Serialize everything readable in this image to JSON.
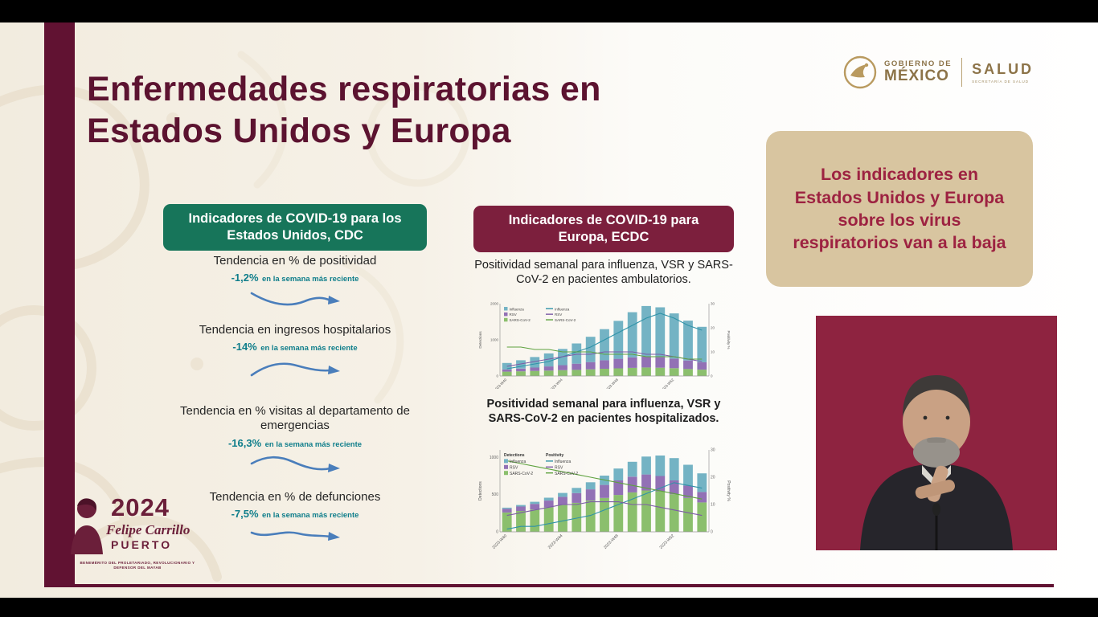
{
  "title": {
    "line1": "Enfermedades respiratorias en",
    "line2": "Estados Unidos y Europa"
  },
  "gov": {
    "line1": "GOBIERNO DE",
    "line2": "MÉXICO",
    "dept": "SALUD",
    "dept_sub": "SECRETARÍA DE SALUD"
  },
  "callout": {
    "text": "Los indicadores en Estados Unidos y Europa sobre los virus respiratorios van a la baja"
  },
  "us": {
    "header": "Indicadores de COVID-19 para los Estados Unidos, CDC",
    "indicators": [
      {
        "title": "Tendencia en % de positividad",
        "value": "-1,2%",
        "note": "en la semana más reciente"
      },
      {
        "title": "Tendencia en ingresos hospitalarios",
        "value": "-14%",
        "note": "en la semana más reciente"
      },
      {
        "title": "Tendencia en % visitas al departamento de emergencias",
        "value": "-16,3%",
        "note": "en la semana más reciente"
      },
      {
        "title": "Tendencia en % de defunciones",
        "value": "-7,5%",
        "note": "en la semana más reciente"
      }
    ]
  },
  "europe": {
    "header": "Indicadores de COVID-19 para Europa, ECDC",
    "caption1": "Positividad semanal para influenza, VSR y SARS-CoV-2 en pacientes ambulatorios.",
    "caption2": "Positividad semanal para influenza, VSR y SARS-CoV-2 en pacientes hospitalizados."
  },
  "emblem": {
    "year": "2024",
    "script": "Felipe Carrillo",
    "name": "PUERTO",
    "motto": "BENEMÉRITO DEL PROLETARIADO, REVOLUCIONARIO Y DEFENSOR DEL MAYAB"
  },
  "colors": {
    "maroon": "#611232",
    "wine_text": "#9d2241",
    "tan_box": "#d8c5a0",
    "green_box": "#17755a",
    "maroon_box": "#7c1f3d",
    "teal_value": "#0f7e8b",
    "arrow_blue": "#4a7ebb",
    "interpreter_bg": "#8e2340"
  },
  "chart_data": [
    {
      "id": "ambulatory",
      "type": "bar",
      "title": "Positividad semanal para influenza, VSR y SARS-CoV-2 en pacientes ambulatorios.",
      "x": [
        "2023-W40",
        "2023-W41",
        "2023-W42",
        "2023-W43",
        "2023-W44",
        "2023-W45",
        "2023-W46",
        "2023-W47",
        "2023-W48",
        "2023-W49",
        "2023-W50",
        "2023-W51",
        "2023-W52",
        "2024-W01",
        "2024-W02"
      ],
      "bars": {
        "series": [
          {
            "name": "SARS-CoV-2",
            "color": "#8bbf6d",
            "values": [
              120,
              130,
              140,
              150,
              160,
              170,
              185,
              200,
              210,
              225,
              235,
              230,
              215,
              195,
              175
            ]
          },
          {
            "name": "RSV",
            "color": "#9271b5",
            "values": [
              60,
              75,
              95,
              115,
              140,
              170,
              200,
              235,
              265,
              290,
              300,
              290,
              265,
              235,
              205
            ]
          },
          {
            "name": "Influenza",
            "color": "#74b3c4",
            "values": [
              180,
              230,
              290,
              360,
              450,
              560,
              700,
              860,
              1050,
              1250,
              1400,
              1380,
              1250,
              1100,
              980
            ]
          }
        ]
      },
      "lines": [
        {
          "name": "Influenza",
          "color": "#2f93a8",
          "values": [
            3,
            4,
            5,
            6,
            8,
            10,
            12,
            15,
            18,
            21,
            24,
            26,
            24,
            21,
            19
          ]
        },
        {
          "name": "RSV",
          "color": "#7c5ba6",
          "values": [
            4,
            5,
            6,
            7,
            8,
            9,
            9,
            10,
            10,
            10,
            9,
            9,
            8,
            7,
            6
          ]
        },
        {
          "name": "SARS-CoV-2",
          "color": "#5ea23f",
          "values": [
            12,
            12,
            11,
            11,
            10,
            10,
            10,
            9,
            9,
            9,
            8,
            8,
            8,
            7,
            7
          ]
        }
      ],
      "axes": {
        "left_label": "Detections",
        "right_label": "Positivity %",
        "left_lim": [
          0,
          2000
        ],
        "right_lim": [
          0,
          30
        ],
        "left_ticks": [
          0,
          1000,
          2000
        ],
        "right_ticks": [
          0,
          10,
          20,
          30
        ],
        "x_ticks": [
          "2023-W40",
          "2023-W44",
          "2023-W48",
          "2023-W52"
        ]
      },
      "legend": {
        "headers": [
          "Detections",
          "Positivity"
        ]
      }
    },
    {
      "id": "hospitalized",
      "type": "bar",
      "title": "Positividad semanal para influenza, VSR y SARS-CoV-2 en pacientes hospitalizados.",
      "x": [
        "2023-W40",
        "2023-W41",
        "2023-W42",
        "2023-W43",
        "2023-W44",
        "2023-W45",
        "2023-W46",
        "2023-W47",
        "2023-W48",
        "2023-W49",
        "2023-W50",
        "2023-W51",
        "2023-W52",
        "2024-W01",
        "2024-W02"
      ],
      "bars": {
        "series": [
          {
            "name": "SARS-CoV-2",
            "color": "#8bbf6d",
            "values": [
              260,
              280,
              300,
              330,
              360,
              390,
              420,
              455,
              495,
              530,
              555,
              545,
              505,
              455,
              395
            ]
          },
          {
            "name": "RSV",
            "color": "#9271b5",
            "values": [
              50,
              60,
              75,
              90,
              110,
              130,
              150,
              175,
              195,
              210,
              215,
              205,
              185,
              165,
              140
            ]
          },
          {
            "name": "Influenza",
            "color": "#74b3c4",
            "values": [
              15,
              20,
              28,
              38,
              52,
              70,
              95,
              125,
              160,
              200,
              240,
              275,
              300,
              280,
              250
            ]
          }
        ]
      },
      "lines": [
        {
          "name": "Influenza",
          "color": "#2f93a8",
          "values": [
            1,
            2,
            2,
            3,
            4,
            5,
            6,
            8,
            10,
            12,
            14,
            16,
            18,
            17,
            16
          ]
        },
        {
          "name": "RSV",
          "color": "#7c5ba6",
          "values": [
            6,
            7,
            8,
            9,
            10,
            10,
            11,
            11,
            11,
            10,
            10,
            9,
            8,
            7,
            6
          ]
        },
        {
          "name": "SARS-CoV-2",
          "color": "#5ea23f",
          "values": [
            26,
            25,
            24,
            23,
            22,
            21,
            20,
            19,
            18,
            17,
            16,
            15,
            14,
            13,
            12
          ]
        }
      ],
      "axes": {
        "left_label": "Detections",
        "right_label": "Positivity %",
        "left_lim": [
          0,
          1100
        ],
        "right_lim": [
          0,
          30
        ],
        "left_ticks": [
          0,
          500,
          1000
        ],
        "right_ticks": [
          0,
          10,
          20,
          30
        ],
        "x_ticks": [
          "2023-W40",
          "2023-W44",
          "2023-W48",
          "2023-W52"
        ]
      },
      "legend": {
        "headers": [
          "Detections",
          "Positivity"
        ]
      }
    }
  ]
}
